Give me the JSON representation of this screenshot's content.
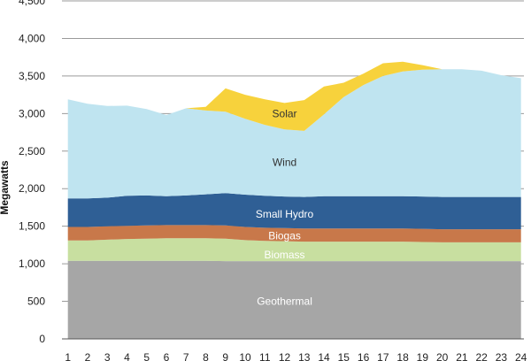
{
  "chart_data": {
    "type": "area",
    "stacked": true,
    "title": "",
    "xlabel": "",
    "ylabel": "Megawatts",
    "ylim": [
      0,
      4500
    ],
    "yticks": [
      0,
      500,
      1000,
      1500,
      2000,
      2500,
      3000,
      3500,
      4000,
      4500
    ],
    "ytick_labels": [
      "0",
      "500",
      "1,000",
      "1,500",
      "2,000",
      "2,500",
      "3,000",
      "3,500",
      "4,000",
      "4,500"
    ],
    "x": [
      1,
      2,
      3,
      4,
      5,
      6,
      7,
      8,
      9,
      10,
      11,
      12,
      13,
      14,
      15,
      16,
      17,
      18,
      19,
      20,
      21,
      22,
      23,
      24
    ],
    "xtick_labels": [
      "1",
      "2",
      "3",
      "4",
      "5",
      "6",
      "7",
      "8",
      "9",
      "10",
      "11",
      "12",
      "13",
      "14",
      "15",
      "16",
      "17",
      "18",
      "19",
      "20",
      "21",
      "22",
      "23",
      "24"
    ],
    "grid": true,
    "legend": "none (labels inside areas)",
    "series": [
      {
        "name": "Geothermal",
        "color": "#a6a6a6",
        "label_color": "#ffffff",
        "values": [
          1040,
          1040,
          1040,
          1040,
          1040,
          1040,
          1040,
          1040,
          1035,
          1035,
          1035,
          1035,
          1035,
          1035,
          1035,
          1035,
          1035,
          1035,
          1035,
          1035,
          1035,
          1035,
          1035,
          1035
        ]
      },
      {
        "name": "Biomass",
        "color": "#c8dfa0",
        "label_color": "#ffffff",
        "values": [
          270,
          270,
          280,
          290,
          295,
          300,
          300,
          300,
          300,
          280,
          270,
          265,
          260,
          260,
          260,
          260,
          260,
          260,
          255,
          250,
          250,
          250,
          250,
          250
        ]
      },
      {
        "name": "Biogas",
        "color": "#c8784a",
        "label_color": "#ffffff",
        "values": [
          180,
          180,
          180,
          175,
          175,
          175,
          175,
          175,
          175,
          175,
          175,
          175,
          175,
          175,
          175,
          175,
          175,
          175,
          175,
          175,
          175,
          175,
          175,
          175
        ]
      },
      {
        "name": "Small Hydro",
        "color": "#2f5f95",
        "label_color": "#ffffff",
        "values": [
          380,
          380,
          380,
          400,
          400,
          385,
          395,
          410,
          430,
          430,
          425,
          420,
          420,
          430,
          430,
          430,
          430,
          430,
          430,
          430,
          430,
          430,
          430,
          430
        ]
      },
      {
        "name": "Wind",
        "color": "#bfe4f0",
        "label_color": "#333333",
        "values": [
          1320,
          1260,
          1220,
          1200,
          1150,
          1080,
          1160,
          1115,
          1085,
          1010,
          945,
          895,
          880,
          1090,
          1320,
          1480,
          1600,
          1660,
          1690,
          1700,
          1700,
          1680,
          1620,
          1580
        ]
      },
      {
        "name": "Solar",
        "color": "#f7d23c",
        "label_color": "#333333",
        "values": [
          0,
          0,
          0,
          0,
          0,
          0,
          0,
          50,
          310,
          320,
          340,
          350,
          410,
          370,
          190,
          150,
          170,
          130,
          60,
          0,
          0,
          0,
          0,
          0
        ]
      }
    ],
    "label_positions": {
      "Geothermal": {
        "x": 12,
        "y": 500
      },
      "Biomass": {
        "x": 12,
        "y": 1120
      },
      "Biogas": {
        "x": 12,
        "y": 1375
      },
      "Small Hydro": {
        "x": 12,
        "y": 1660
      },
      "Wind": {
        "x": 12,
        "y": 2350
      },
      "Solar": {
        "x": 12,
        "y": 3000
      }
    }
  }
}
